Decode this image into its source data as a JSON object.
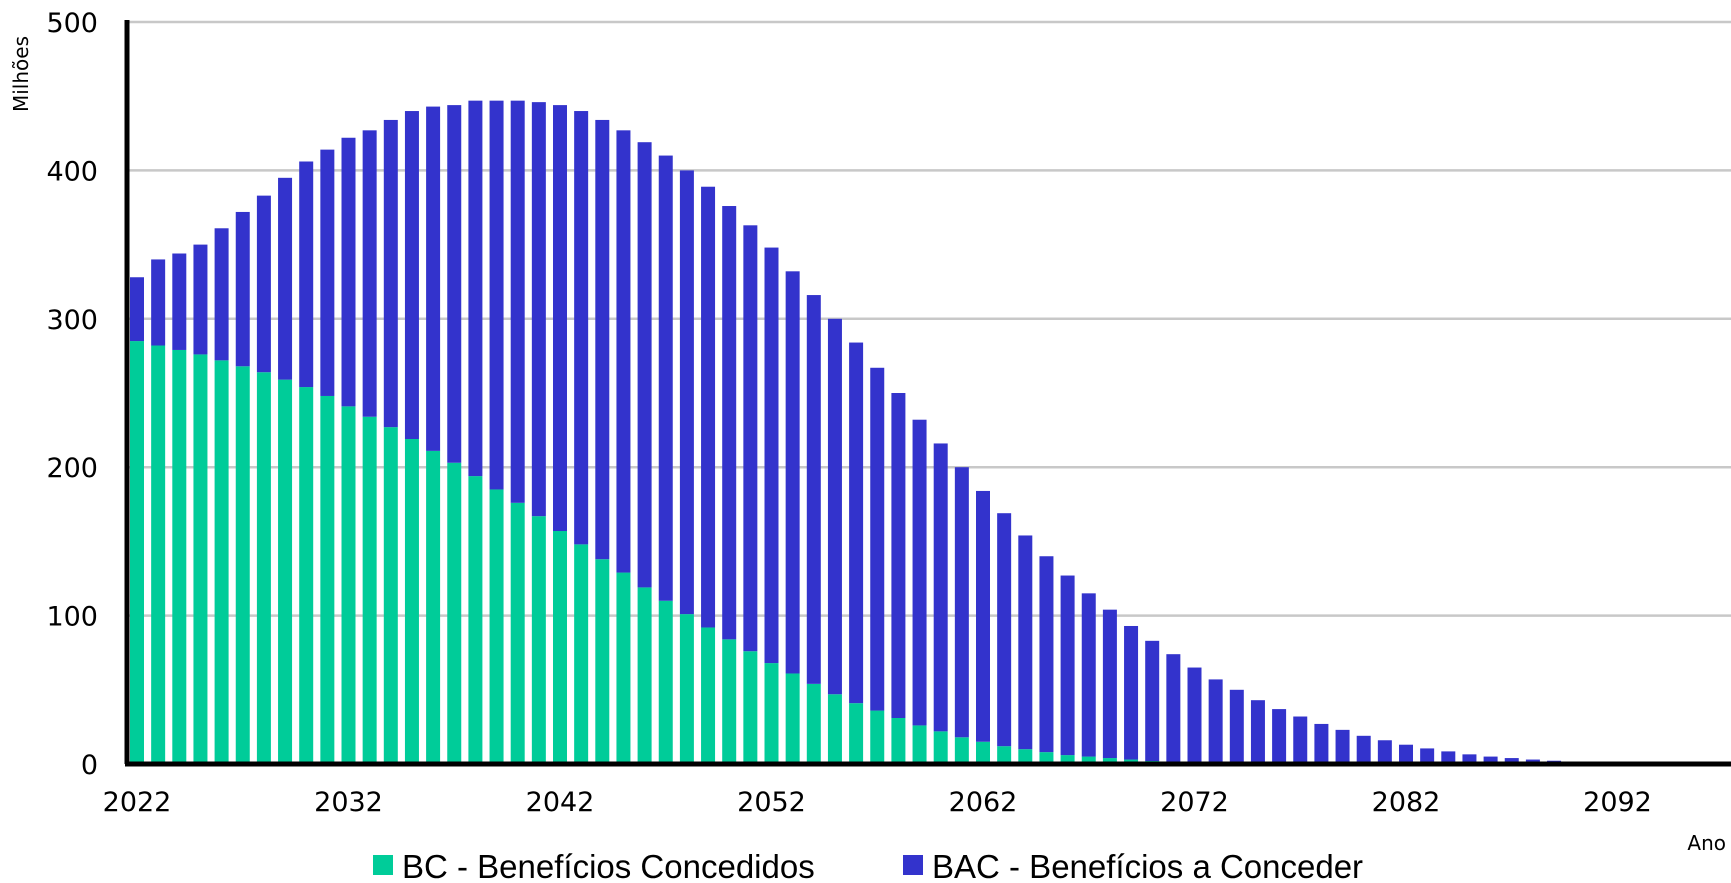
{
  "chart_data": {
    "type": "bar",
    "stacked": true,
    "ylabel": "Milhões",
    "xlabel": "Ano",
    "ylim": [
      0,
      500
    ],
    "yticks": [
      0,
      100,
      200,
      300,
      400,
      500
    ],
    "xticks": [
      2022,
      2032,
      2042,
      2052,
      2062,
      2072,
      2082,
      2092
    ],
    "grid": true,
    "legend_position": "bottom",
    "colors": {
      "BC": "#00CC99",
      "BAC": "#3333CC"
    },
    "x_start": 2022,
    "series": [
      {
        "name": "BC - Benefícios Concedidos",
        "values": [
          285,
          282,
          279,
          276,
          272,
          268,
          264,
          259,
          254,
          248,
          241,
          234,
          227,
          219,
          211,
          203,
          194,
          185,
          176,
          167,
          157,
          148,
          138,
          129,
          119,
          110,
          101,
          92,
          84,
          76,
          68,
          61,
          54,
          47,
          41,
          36,
          31,
          26,
          22,
          18,
          15,
          12,
          10,
          8,
          6,
          5,
          4,
          3,
          2,
          1.5,
          1,
          0.7,
          0.5,
          0.3,
          0.2,
          0.1,
          0.1,
          0,
          0,
          0,
          0,
          0,
          0,
          0,
          0,
          0,
          0,
          0,
          0,
          0,
          0,
          0,
          0,
          0,
          0,
          0,
          0
        ]
      },
      {
        "name": "BAC - Benefícios a Conceder",
        "values": [
          43,
          58,
          65,
          74,
          89,
          104,
          119,
          136,
          152,
          166,
          181,
          193,
          207,
          221,
          232,
          241,
          253,
          262,
          271,
          279,
          287,
          292,
          296,
          298,
          300,
          300,
          299,
          297,
          292,
          287,
          280,
          271,
          262,
          253,
          243,
          231,
          219,
          206,
          194,
          182,
          169,
          157,
          144,
          132,
          121,
          110,
          100,
          90,
          81,
          72.5,
          64,
          56.3,
          49.5,
          42.7,
          36.8,
          31.9,
          26.9,
          23,
          19,
          16,
          13,
          10.5,
          8.5,
          6.5,
          5,
          4,
          3,
          2.2,
          1.6,
          1.2,
          1,
          0.8,
          0.6,
          0.5,
          0.4,
          0.3,
          0.2
        ]
      }
    ]
  }
}
